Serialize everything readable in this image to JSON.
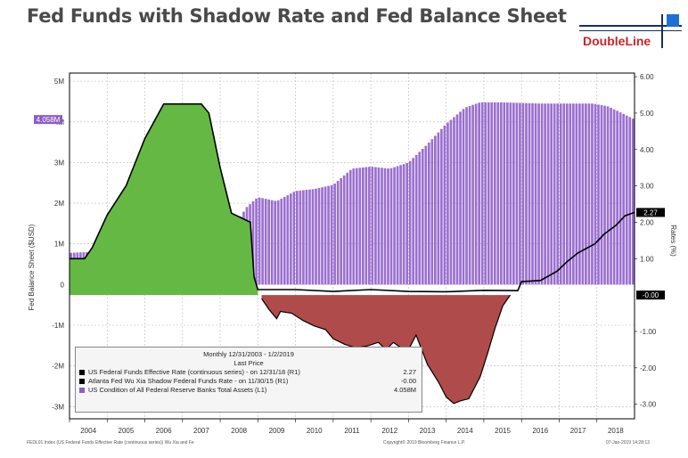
{
  "page": {
    "title": "Fed Funds with Shadow Rate and Fed Balance Sheet",
    "logo_text": "DoubleLine",
    "footer_left": "FEDL01 Index (US Federal Funds Effective Rate (continuous series)) Wu Xia and Fe",
    "footer_mid": "Copyright© 2019 Bloomberg Finance L.P.",
    "footer_right": "07-Jan-2019 14:28:13"
  },
  "legend": {
    "header1": "Monthly 12/31/2003 - 1/2/2019",
    "header2": "Last Price",
    "items": [
      {
        "label": "US Federal Funds Effective Rate (continuous series) - on 12/31/18 (R1)",
        "value": "2.27",
        "color": "#000000"
      },
      {
        "label": "Atlanta Fed Wu Xia Shadow Federal Funds Rate - on 11/30/15 (R1)",
        "value": "-0.00",
        "color": "#000000"
      },
      {
        "label": "US Condition of All Federal Reserve Banks Total Assets (L1)",
        "value": "4.058M",
        "color": "#8e5cc4"
      }
    ]
  },
  "colors": {
    "balance_sheet": "#9b6fd0",
    "fed_funds_fill": "#66b845",
    "shadow_fill": "#b04b4b",
    "line": "#000000",
    "gridline": "#b8b8b8",
    "frame": "#000000"
  },
  "chart_data": {
    "type": "bar",
    "xlabel": "",
    "ylabel": "Fed Balance Sheet ($USD)",
    "y2label": "Rates (%)",
    "xlim": [
      2004,
      2019.0
    ],
    "ylim": [
      -3.3,
      5.2
    ],
    "y2lim": [
      -3.4,
      6.1
    ],
    "x_tick_labels": [
      "2004",
      "2005",
      "2006",
      "2007",
      "2008",
      "2009",
      "2010",
      "2011",
      "2012",
      "2013",
      "2014",
      "2015",
      "2016",
      "2017",
      "2018"
    ],
    "y_tick_labels": [
      "5M",
      "4M",
      "3M",
      "2M",
      "1M",
      "0",
      "-1M",
      "-2M",
      "-3M"
    ],
    "y_tick_values": [
      5,
      4,
      3,
      2,
      1,
      0,
      -1,
      -2,
      -3
    ],
    "y2_tick_labels": [
      "6.00",
      "5.00",
      "4.00",
      "3.00",
      "2.00",
      "1.00",
      "-1.00",
      "-2.00",
      "-3.00"
    ],
    "y2_tick_values": [
      6,
      5,
      4,
      3,
      2,
      1,
      -1,
      -2,
      -3
    ],
    "last_labels": {
      "balance_sheet": "4.058M",
      "fed_funds": "2.27",
      "shadow": "-0.00"
    },
    "series": [
      {
        "name": "US Condition of All Federal Reserve Banks Total Assets",
        "axis": "left",
        "unit": "M",
        "points": [
          [
            2004.0,
            0.78
          ],
          [
            2005.0,
            0.82
          ],
          [
            2006.0,
            0.85
          ],
          [
            2007.0,
            0.88
          ],
          [
            2008.0,
            0.9
          ],
          [
            2008.7,
            1.9
          ],
          [
            2009.0,
            2.15
          ],
          [
            2009.5,
            2.05
          ],
          [
            2010.0,
            2.3
          ],
          [
            2010.5,
            2.35
          ],
          [
            2011.0,
            2.45
          ],
          [
            2011.5,
            2.85
          ],
          [
            2012.0,
            2.9
          ],
          [
            2012.5,
            2.85
          ],
          [
            2013.0,
            3.0
          ],
          [
            2013.5,
            3.45
          ],
          [
            2014.0,
            3.95
          ],
          [
            2014.5,
            4.35
          ],
          [
            2014.9,
            4.48
          ],
          [
            2015.5,
            4.48
          ],
          [
            2016.5,
            4.45
          ],
          [
            2017.5,
            4.45
          ],
          [
            2017.9,
            4.45
          ],
          [
            2018.3,
            4.38
          ],
          [
            2018.7,
            4.2
          ],
          [
            2019.0,
            4.06
          ]
        ]
      },
      {
        "name": "US Federal Funds Effective Rate (continuous series)",
        "axis": "right",
        "unit": "%",
        "points": [
          [
            2004.0,
            1.0
          ],
          [
            2004.4,
            1.0
          ],
          [
            2004.6,
            1.3
          ],
          [
            2005.0,
            2.2
          ],
          [
            2005.5,
            3.0
          ],
          [
            2006.0,
            4.3
          ],
          [
            2006.5,
            5.25
          ],
          [
            2007.5,
            5.25
          ],
          [
            2007.7,
            5.0
          ],
          [
            2008.0,
            3.5
          ],
          [
            2008.3,
            2.25
          ],
          [
            2008.8,
            2.0
          ],
          [
            2008.9,
            0.5
          ],
          [
            2009.0,
            0.15
          ],
          [
            2009.5,
            0.15
          ],
          [
            2010.0,
            0.15
          ],
          [
            2011.0,
            0.1
          ],
          [
            2012.0,
            0.15
          ],
          [
            2013.0,
            0.1
          ],
          [
            2014.0,
            0.09
          ],
          [
            2015.0,
            0.13
          ],
          [
            2015.9,
            0.12
          ],
          [
            2016.0,
            0.37
          ],
          [
            2016.5,
            0.4
          ],
          [
            2016.95,
            0.66
          ],
          [
            2017.2,
            0.91
          ],
          [
            2017.5,
            1.16
          ],
          [
            2017.95,
            1.41
          ],
          [
            2018.2,
            1.68
          ],
          [
            2018.5,
            1.91
          ],
          [
            2018.75,
            2.18
          ],
          [
            2019.0,
            2.27
          ]
        ]
      },
      {
        "name": "Atlanta Fed Wu Xia Shadow Federal Funds Rate",
        "axis": "right",
        "unit": "%",
        "points": [
          [
            2009.1,
            -0.1
          ],
          [
            2009.3,
            -0.4
          ],
          [
            2009.5,
            -0.65
          ],
          [
            2009.6,
            -0.45
          ],
          [
            2009.9,
            -0.5
          ],
          [
            2010.2,
            -0.7
          ],
          [
            2010.5,
            -0.85
          ],
          [
            2010.8,
            -0.95
          ],
          [
            2011.0,
            -1.2
          ],
          [
            2011.3,
            -1.35
          ],
          [
            2011.6,
            -1.45
          ],
          [
            2011.9,
            -1.4
          ],
          [
            2012.2,
            -1.3
          ],
          [
            2012.4,
            -1.5
          ],
          [
            2012.6,
            -1.3
          ],
          [
            2012.8,
            -1.45
          ],
          [
            2013.0,
            -1.5
          ],
          [
            2013.2,
            -1.1
          ],
          [
            2013.5,
            -1.9
          ],
          [
            2013.8,
            -2.4
          ],
          [
            2014.0,
            -2.8
          ],
          [
            2014.2,
            -2.98
          ],
          [
            2014.4,
            -2.9
          ],
          [
            2014.6,
            -2.85
          ],
          [
            2014.9,
            -2.25
          ],
          [
            2015.1,
            -1.6
          ],
          [
            2015.3,
            -0.9
          ],
          [
            2015.5,
            -0.3
          ],
          [
            2015.7,
            -0.0
          ]
        ]
      }
    ]
  }
}
